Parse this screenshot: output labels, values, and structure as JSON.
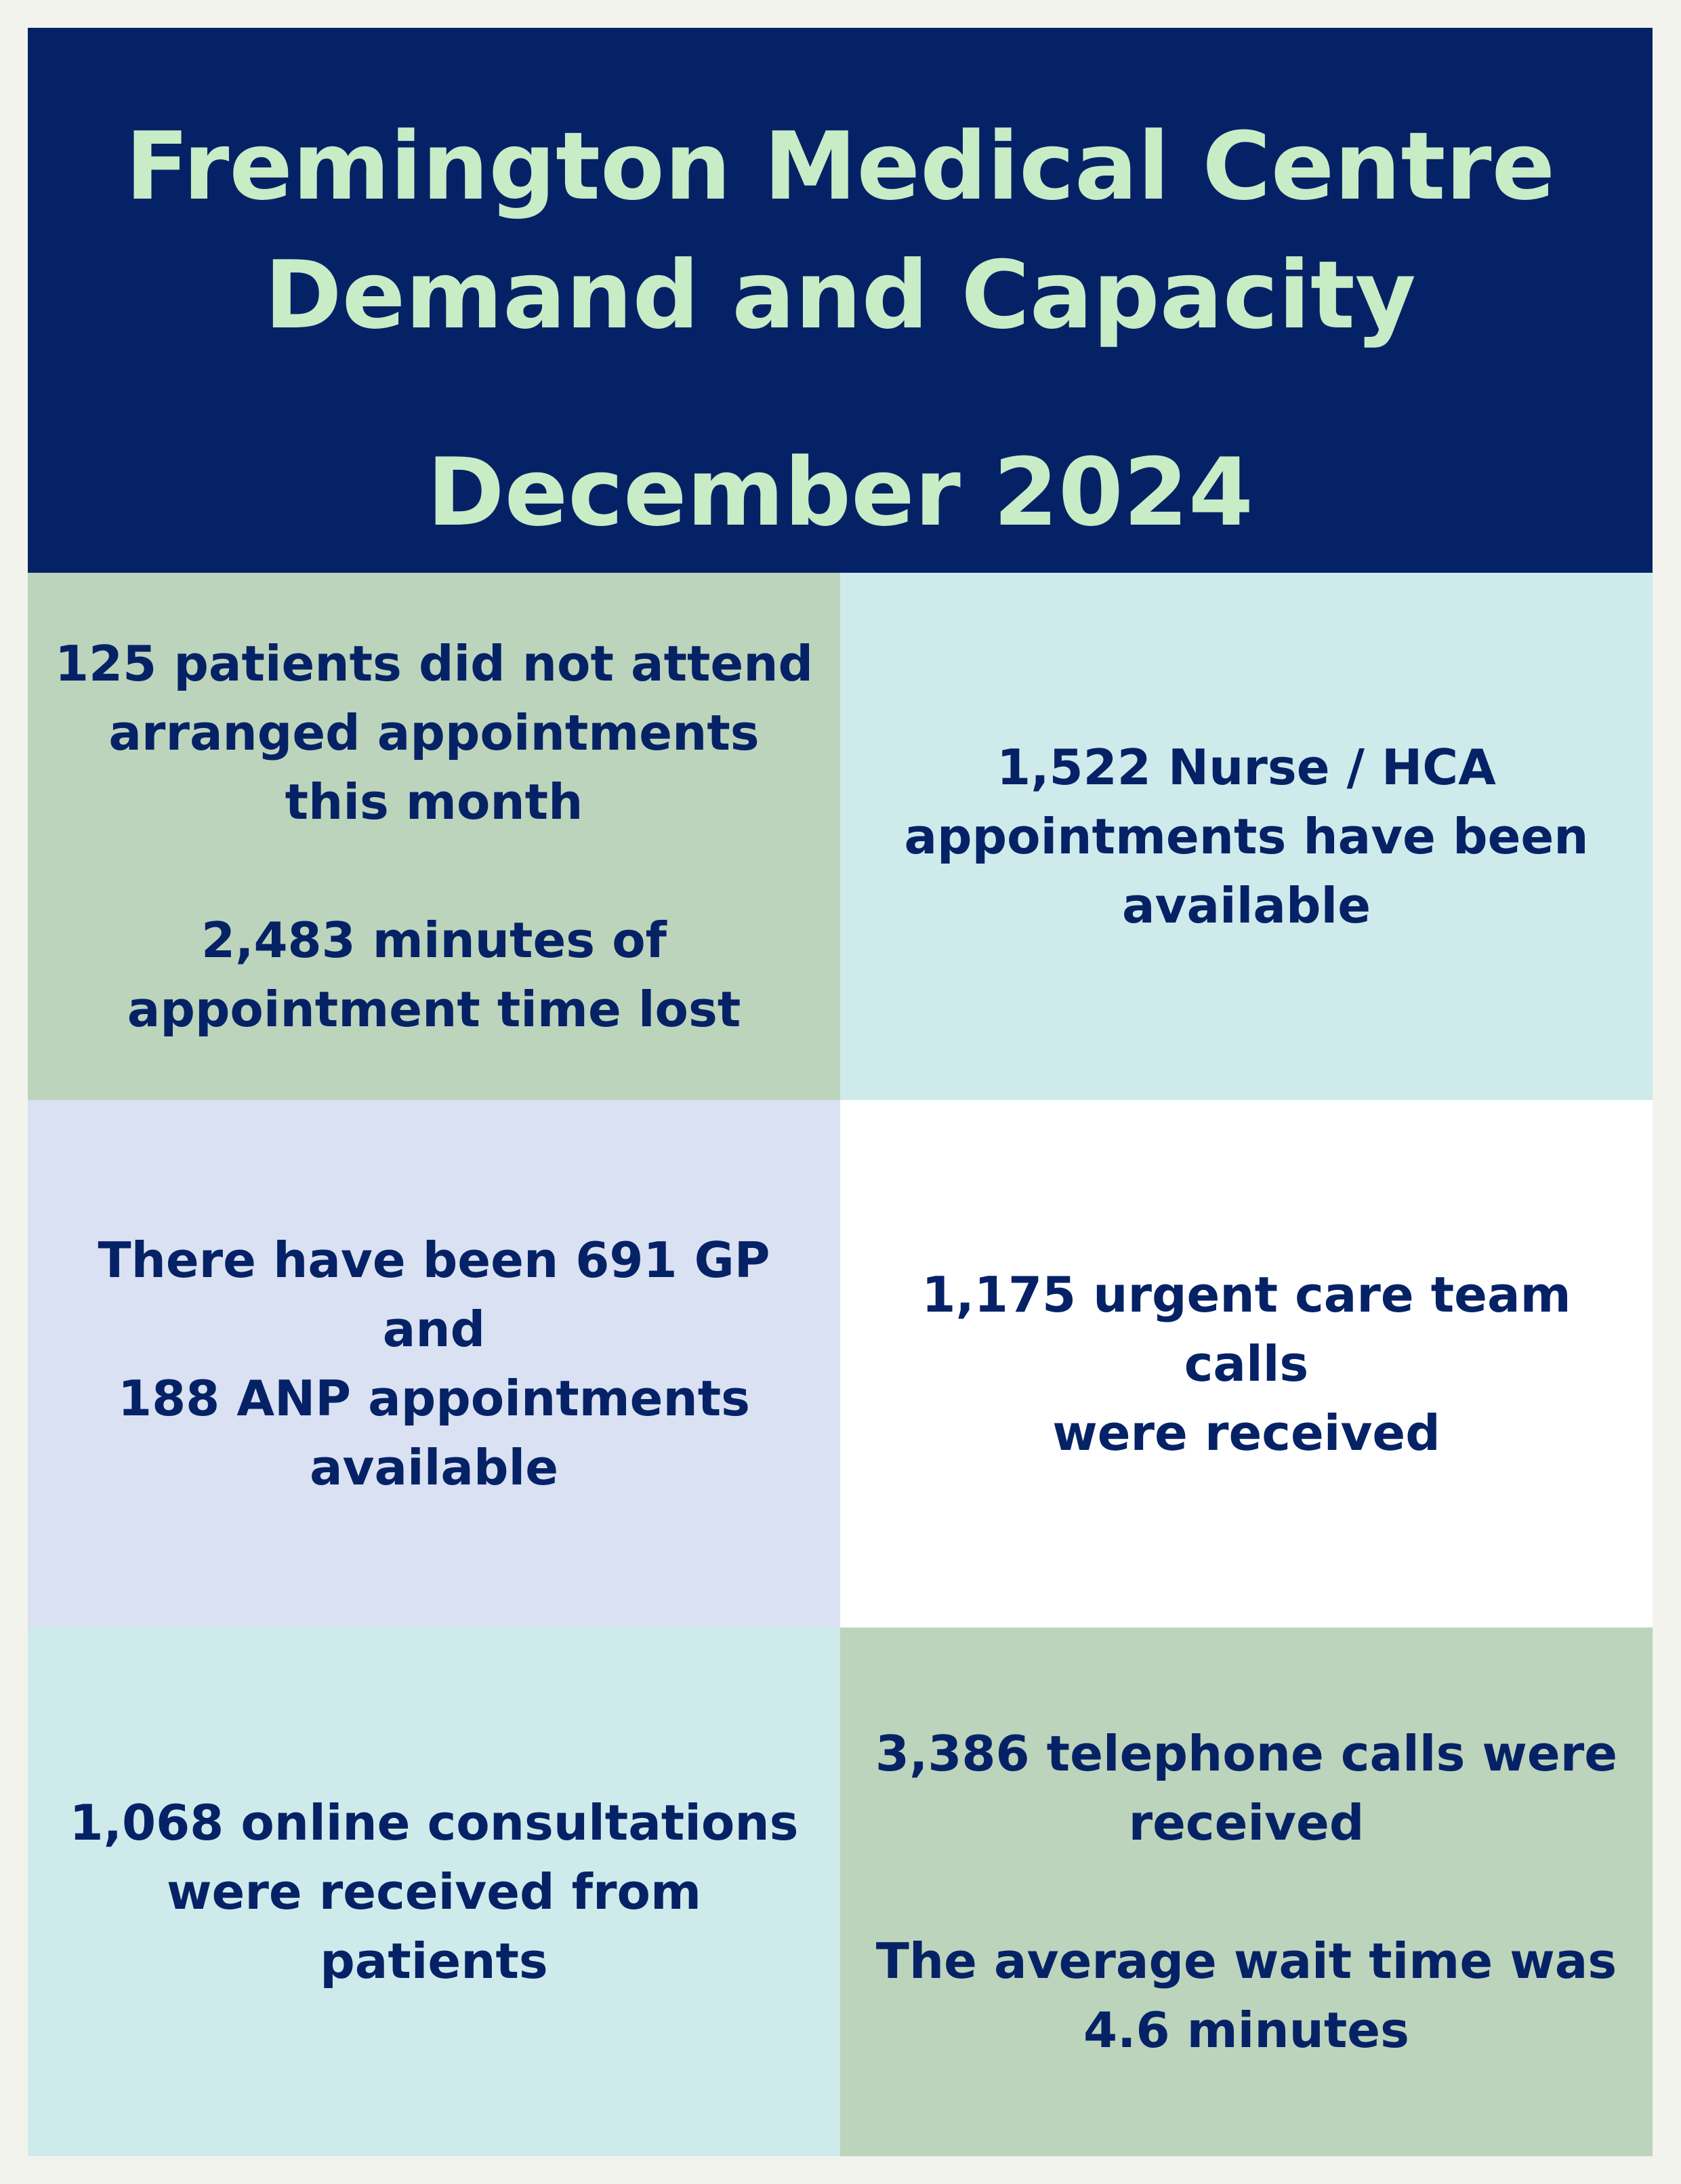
{
  "header": {
    "line1": "Fremington Medical Centre",
    "line2": "Demand and Capacity",
    "line3": "December 2024"
  },
  "cells": {
    "dna": {
      "text1": "125 patients did not attend\narranged appointments\nthis month",
      "text2": "2,483 minutes of\nappointment time lost"
    },
    "nurse": {
      "text1": "1,522 Nurse / HCA\nappointments have been\navailable"
    },
    "gp": {
      "text1": "There have been 691 GP and\n188 ANP appointments\navailable"
    },
    "urgent": {
      "text1": "1,175 urgent care team calls\nwere received"
    },
    "online": {
      "text1": "1,068 online consultations\nwere received from patients"
    },
    "phone": {
      "text1": "3,386 telephone calls were\nreceived",
      "text2": "The average wait time was\n4.6 minutes"
    }
  },
  "colors": {
    "header_bg": "#062266",
    "header_text": "#c8ecc6",
    "body_text": "#062266",
    "sage": "#bcd4bb",
    "aqua": "#cfeaeb",
    "lavender": "#d9e1f2",
    "white": "#ffffff"
  }
}
